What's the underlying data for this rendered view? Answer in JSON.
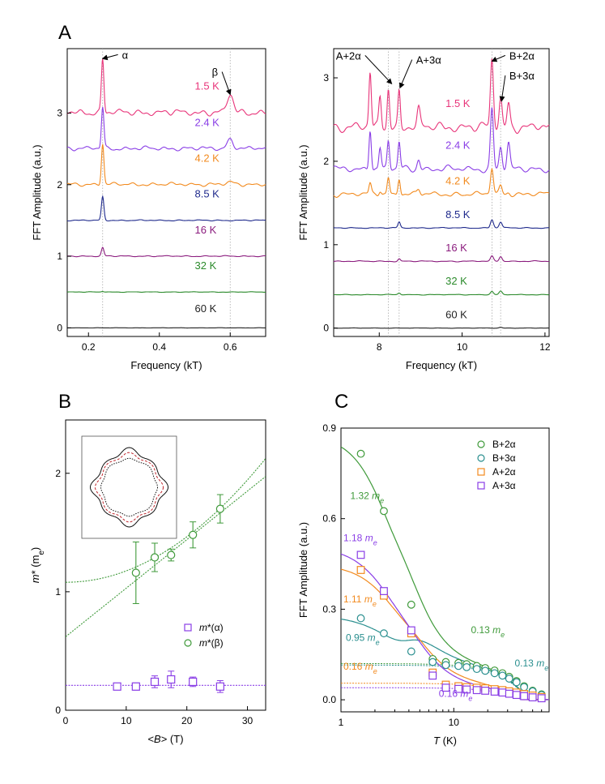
{
  "colors": {
    "t1_5": "#e8357a",
    "t2_4": "#8a3ee6",
    "t4_2": "#f28a1e",
    "t8_5": "#1f2a8c",
    "t16": "#8b1c7e",
    "t32": "#2b8a2b",
    "t60": "#222222",
    "green": "#3f9a3a",
    "teal": "#2a8f8f",
    "orange": "#f28a1e",
    "purple": "#8a3ee6",
    "grid": "#aaaaaa",
    "inset_red": "#c0262c"
  },
  "chart_data": [
    {
      "id": "A-left",
      "panel_label": "A",
      "type": "line",
      "xlabel": "Frequency (kT)",
      "ylabel": "FFT Amplitude (a.u.)",
      "xlim": [
        0.14,
        0.7
      ],
      "ylim": [
        -0.12,
        3.9
      ],
      "xticks": [
        "0.2",
        "0.4",
        "0.6"
      ],
      "xtick_values": [
        0.2,
        0.4,
        0.6
      ],
      "yticks": [
        "0",
        "1",
        "2",
        "3"
      ],
      "ytick_values": [
        0,
        1,
        2,
        3
      ],
      "reference_lines_x": [
        0.24,
        0.6
      ],
      "peaks": [
        {
          "f": 0.24,
          "width": 0.005
        },
        {
          "f": 0.6,
          "width": 0.012
        }
      ],
      "series": [
        {
          "name": "1.5 K",
          "offset": 3.0,
          "peak_amps": [
            0.75,
            0.25
          ],
          "noise": 0.045,
          "color": "t1_5",
          "label_x": 0.5,
          "label_y": 3.33
        },
        {
          "name": "2.4 K",
          "offset": 2.5,
          "peak_amps": [
            0.58,
            0.13
          ],
          "noise": 0.03,
          "color": "t2_4",
          "label_x": 0.5,
          "label_y": 2.82
        },
        {
          "name": "4.2 K",
          "offset": 2.0,
          "peak_amps": [
            0.57,
            0.03
          ],
          "noise": 0.025,
          "color": "t4_2",
          "label_x": 0.5,
          "label_y": 2.32
        },
        {
          "name": "8.5 K",
          "offset": 1.5,
          "peak_amps": [
            0.33,
            0.0
          ],
          "noise": 0.008,
          "color": "t8_5",
          "label_x": 0.5,
          "label_y": 1.82
        },
        {
          "name": "16 K",
          "offset": 1.0,
          "peak_amps": [
            0.12,
            0.0
          ],
          "noise": 0.008,
          "color": "t16",
          "label_x": 0.5,
          "label_y": 1.32
        },
        {
          "name": "32 K",
          "offset": 0.5,
          "peak_amps": [
            0.01,
            0.0
          ],
          "noise": 0.004,
          "color": "t32",
          "label_x": 0.5,
          "label_y": 0.82
        },
        {
          "name": "60 K",
          "offset": 0.0,
          "peak_amps": [
            0.0,
            0.0
          ],
          "noise": 0.002,
          "color": "t60",
          "label_x": 0.5,
          "label_y": 0.22
        }
      ],
      "annotations": [
        {
          "text": "α",
          "at_x": 0.24,
          "at_y": 3.76,
          "text_x": 0.29,
          "text_y": 3.76
        },
        {
          "text": "β",
          "at_x": 0.6,
          "at_y": 3.26,
          "text_x": 0.57,
          "text_y": 3.52
        }
      ]
    },
    {
      "id": "A-right",
      "type": "line",
      "xlabel": "Frequency (kT)",
      "ylabel": "FFT Amplitude (a.u.)",
      "xlim": [
        6.9,
        12.1
      ],
      "ylim": [
        -0.1,
        3.35
      ],
      "xticks": [
        "8",
        "10",
        "12"
      ],
      "xtick_values": [
        8,
        10,
        12
      ],
      "yticks": [
        "0",
        "1",
        "2",
        "3"
      ],
      "ytick_values": [
        0,
        1,
        2,
        3
      ],
      "reference_lines_x": [
        8.22,
        8.48,
        10.72,
        10.93
      ],
      "peaks": [
        {
          "f": 7.78,
          "width": 0.04
        },
        {
          "f": 8.02,
          "width": 0.04
        },
        {
          "f": 8.22,
          "width": 0.04
        },
        {
          "f": 8.48,
          "width": 0.04
        },
        {
          "f": 8.95,
          "width": 0.05
        },
        {
          "f": 10.72,
          "width": 0.05
        },
        {
          "f": 10.93,
          "width": 0.05
        },
        {
          "f": 11.12,
          "width": 0.05
        }
      ],
      "series": [
        {
          "name": "1.5 K",
          "offset": 2.4,
          "peak_amps": [
            0.65,
            0.35,
            0.48,
            0.42,
            0.2,
            0.8,
            0.35,
            0.28
          ],
          "noise": 0.06,
          "color": "t1_5",
          "label_x": 9.6,
          "label_y": 2.65
        },
        {
          "name": "2.4 K",
          "offset": 1.9,
          "peak_amps": [
            0.5,
            0.25,
            0.33,
            0.33,
            0.12,
            0.72,
            0.27,
            0.3
          ],
          "noise": 0.04,
          "color": "t2_4",
          "label_x": 9.6,
          "label_y": 2.15
        },
        {
          "name": "4.2 K",
          "offset": 1.6,
          "peak_amps": [
            0.12,
            0.05,
            0.2,
            0.2,
            0.06,
            0.32,
            0.1,
            0.03
          ],
          "noise": 0.03,
          "color": "t4_2",
          "label_x": 9.6,
          "label_y": 1.72
        },
        {
          "name": "8.5 K",
          "offset": 1.2,
          "peak_amps": [
            0.0,
            0.0,
            0.0,
            0.07,
            0.0,
            0.1,
            0.07,
            0.0
          ],
          "noise": 0.006,
          "color": "t8_5",
          "label_x": 9.6,
          "label_y": 1.32
        },
        {
          "name": "16 K",
          "offset": 0.8,
          "peak_amps": [
            0.0,
            0.0,
            0.0,
            0.03,
            0.0,
            0.06,
            0.06,
            0.0
          ],
          "noise": 0.006,
          "color": "t16",
          "label_x": 9.6,
          "label_y": 0.92
        },
        {
          "name": "32 K",
          "offset": 0.4,
          "peak_amps": [
            0.0,
            0.0,
            0.0,
            0.02,
            0.0,
            0.04,
            0.04,
            0.0
          ],
          "noise": 0.004,
          "color": "t32",
          "label_x": 9.6,
          "label_y": 0.52
        },
        {
          "name": "60 K",
          "offset": 0.0,
          "peak_amps": [
            0.0,
            0.0,
            0.0,
            0.0,
            0.0,
            0.0,
            0.01,
            0.0
          ],
          "noise": 0.002,
          "color": "t60",
          "label_x": 9.6,
          "label_y": 0.12
        }
      ],
      "annotations": [
        {
          "text": "A+2α",
          "at_x": 8.3,
          "at_y": 2.93,
          "text_x": 7.6,
          "text_y": 3.22
        },
        {
          "text": "A+3α",
          "at_x": 8.5,
          "at_y": 2.88,
          "text_x": 8.85,
          "text_y": 3.17
        },
        {
          "text": "B+2α",
          "at_x": 10.72,
          "at_y": 3.2,
          "text_x": 11.1,
          "text_y": 3.22
        },
        {
          "text": "B+3α",
          "at_x": 10.95,
          "at_y": 2.72,
          "text_x": 11.1,
          "text_y": 2.98
        }
      ]
    },
    {
      "id": "B",
      "panel_label": "B",
      "type": "scatter",
      "xlabel_parts": [
        "<",
        "B",
        "> (T)"
      ],
      "ylabel_parts": [
        "m",
        "* (m",
        "e",
        ")"
      ],
      "xlim": [
        0,
        33
      ],
      "ylim": [
        0,
        2.45
      ],
      "xticks": [
        "0",
        "10",
        "20",
        "30"
      ],
      "xtick_values": [
        0,
        10,
        20,
        30
      ],
      "yticks": [
        "0",
        "1",
        "2"
      ],
      "ytick_values": [
        0,
        1,
        2
      ],
      "series": [
        {
          "name_parts": [
            "m",
            "*(α)"
          ],
          "marker": "square",
          "color": "purple",
          "x": [
            8.5,
            11.6,
            14.7,
            17.4,
            21.0,
            25.5
          ],
          "y": [
            0.2,
            0.2,
            0.24,
            0.26,
            0.24,
            0.2
          ],
          "err": [
            0.02,
            0.03,
            0.05,
            0.07,
            0.04,
            0.05
          ]
        },
        {
          "name_parts": [
            "m",
            "*(β)"
          ],
          "marker": "circle",
          "color": "green",
          "x": [
            11.6,
            14.7,
            17.4,
            21.0,
            25.5
          ],
          "y": [
            1.16,
            1.29,
            1.31,
            1.48,
            1.7
          ],
          "err": [
            0.26,
            0.12,
            0.05,
            0.11,
            0.12
          ]
        }
      ],
      "fits": [
        {
          "kind": "quadratic",
          "a": 1.08,
          "b": 0.00096,
          "color": "green",
          "style": "dot"
        },
        {
          "kind": "linear",
          "a": 0.62,
          "b": 0.041,
          "color": "green",
          "style": "dot"
        },
        {
          "kind": "constant",
          "a": 0.21,
          "color": "purple",
          "style": "dot"
        }
      ],
      "legend": "lower-right"
    },
    {
      "id": "C",
      "panel_label": "C",
      "type": "scatter",
      "xlabel_parts": [
        "T",
        " (K)"
      ],
      "ylabel": "FFT Amplitude (a.u.)",
      "xscale": "log",
      "xlim": [
        1,
        70
      ],
      "ylim": [
        -0.04,
        0.9
      ],
      "xticks": [
        "1",
        "10"
      ],
      "xtick_values": [
        1,
        10
      ],
      "yticks": [
        "0.0",
        "0.3",
        "0.6",
        "0.9"
      ],
      "ytick_values": [
        0.0,
        0.3,
        0.6,
        0.9
      ],
      "series": [
        {
          "name": "B+2α",
          "marker": "circle",
          "color": "green",
          "x": [
            1.5,
            2.4,
            4.2,
            6.5,
            8.5,
            11,
            13,
            16,
            19,
            23,
            27,
            31,
            36,
            42,
            50,
            60
          ],
          "y": [
            0.815,
            0.625,
            0.315,
            0.135,
            0.125,
            0.122,
            0.118,
            0.112,
            0.105,
            0.097,
            0.088,
            0.076,
            0.062,
            0.045,
            0.03,
            0.018
          ]
        },
        {
          "name": "B+3α",
          "marker": "circle",
          "color": "teal",
          "x": [
            1.5,
            2.4,
            4.2,
            6.5,
            8.5,
            11,
            13,
            16,
            19,
            23,
            27,
            31,
            36,
            42,
            50,
            60
          ],
          "y": [
            0.27,
            0.22,
            0.16,
            0.125,
            0.115,
            0.112,
            0.108,
            0.102,
            0.096,
            0.088,
            0.08,
            0.07,
            0.058,
            0.042,
            0.028,
            0.016
          ]
        },
        {
          "name": "A+2α",
          "marker": "square",
          "color": "orange",
          "x": [
            1.5,
            2.4,
            4.2,
            6.5,
            8.5,
            11,
            13,
            16,
            19,
            23,
            27,
            31,
            36,
            42,
            50,
            60
          ],
          "y": [
            0.43,
            0.345,
            0.22,
            0.09,
            0.05,
            0.045,
            0.042,
            0.04,
            0.038,
            0.035,
            0.032,
            0.028,
            0.024,
            0.019,
            0.014,
            0.009
          ]
        },
        {
          "name": "A+3α",
          "marker": "square",
          "color": "purple",
          "x": [
            1.5,
            2.4,
            4.2,
            6.5,
            8.5,
            11,
            13,
            16,
            19,
            23,
            27,
            31,
            36,
            42,
            50,
            60
          ],
          "y": [
            0.48,
            0.36,
            0.23,
            0.08,
            0.04,
            0.036,
            0.034,
            0.032,
            0.03,
            0.027,
            0.024,
            0.02,
            0.016,
            0.012,
            0.008,
            0.005
          ]
        }
      ],
      "fits": [
        {
          "name": "B+2α",
          "color": "green",
          "A": 0.88,
          "T0": 3.3,
          "n": 2.5,
          "base": 0.12,
          "Tc": 45
        },
        {
          "name": "B+3α",
          "color": "teal",
          "A": 0.28,
          "T0": 4.0,
          "n": 2.2,
          "base": 0.115,
          "Tc": 45
        },
        {
          "name": "A+2α",
          "color": "orange",
          "A": 0.45,
          "T0": 3.8,
          "n": 2.4,
          "base": 0.055,
          "Tc": 40
        },
        {
          "name": "A+3α",
          "color": "purple",
          "A": 0.51,
          "T0": 3.5,
          "n": 2.3,
          "base": 0.04,
          "Tc": 40
        }
      ],
      "mass_labels": [
        {
          "value": "1.32",
          "color": "green",
          "x": 1.15,
          "y": 0.665
        },
        {
          "value": "1.18",
          "color": "purple",
          "x": 1.0,
          "y": 0.525
        },
        {
          "value": "1.11",
          "color": "orange",
          "x": 1.0,
          "y": 0.322
        },
        {
          "value": "0.95",
          "color": "teal",
          "x": 1.05,
          "y": 0.195
        },
        {
          "value": "0.16",
          "color": "orange",
          "x": 1.0,
          "y": 0.1
        },
        {
          "value": "0.13",
          "color": "green",
          "x": 13.5,
          "y": 0.22
        },
        {
          "value": "0.13",
          "color": "teal",
          "x": 33,
          "y": 0.11
        },
        {
          "value": "0.16",
          "color": "purple",
          "x": 7.0,
          "y": 0.01
        }
      ],
      "mass_unit_parts": [
        "m",
        "e"
      ],
      "legend": "top-right"
    }
  ]
}
